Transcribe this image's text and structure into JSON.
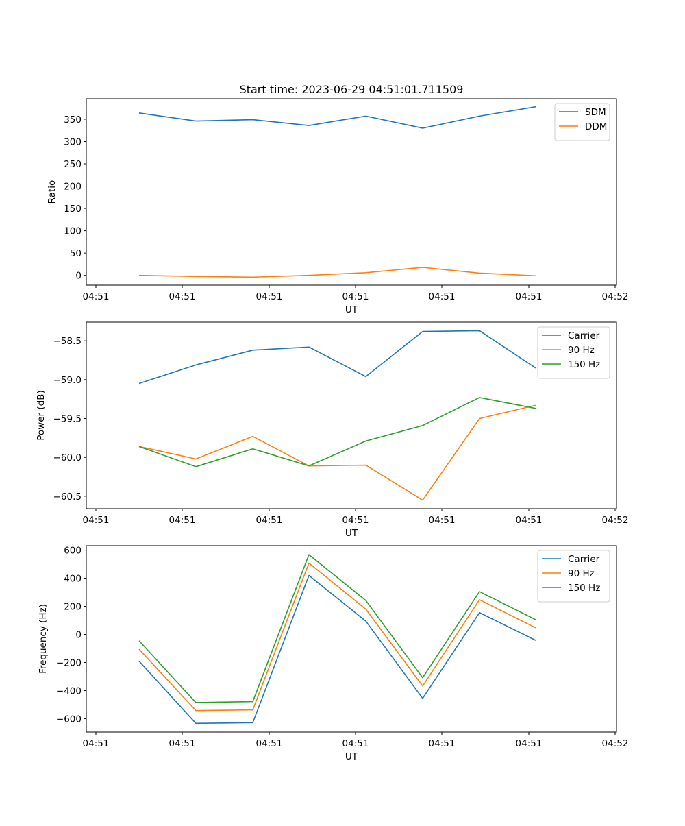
{
  "figure": {
    "title": "Start time: 2023-06-29 04:51:01.711509"
  },
  "colors": {
    "blue": "#1f77b4",
    "orange": "#ff7f0e",
    "green": "#2ca02c"
  },
  "chart_data": [
    {
      "type": "line",
      "title": "Start time: 2023-06-29 04:51:01.711509",
      "xlabel": "UT",
      "ylabel": "Ratio",
      "x_ticks": [
        "04:51",
        "04:51",
        "04:51",
        "04:51",
        "04:51",
        "04:51",
        "04:52"
      ],
      "ylim": [
        -22,
        396
      ],
      "y_ticks": [
        0,
        50,
        100,
        150,
        200,
        250,
        300,
        350
      ],
      "grid": false,
      "legend_position": "top-right",
      "series": [
        {
          "name": "SDM",
          "color": "#1f77b4",
          "values": [
            364,
            346,
            349,
            336,
            357,
            330,
            357,
            378
          ]
        },
        {
          "name": "DDM",
          "color": "#ff7f0e",
          "values": [
            0,
            -2.5,
            -4,
            0,
            6,
            18,
            5,
            -1
          ]
        }
      ]
    },
    {
      "type": "line",
      "title": "",
      "xlabel": "UT",
      "ylabel": "Power (dB)",
      "x_ticks": [
        "04:51",
        "04:51",
        "04:51",
        "04:51",
        "04:51",
        "04:51",
        "04:52"
      ],
      "ylim": [
        -60.66,
        -58.26
      ],
      "y_ticks": [
        -58.5,
        -59.0,
        -59.5,
        -60.0,
        -60.5
      ],
      "y_tick_labels": [
        "−58.5",
        "−59.0",
        "−59.5",
        "−60.0",
        "−60.5"
      ],
      "grid": false,
      "legend_position": "top-right",
      "series": [
        {
          "name": "Carrier",
          "color": "#1f77b4",
          "values": [
            -59.05,
            -58.81,
            -58.62,
            -58.58,
            -58.96,
            -58.38,
            -58.37,
            -58.85
          ]
        },
        {
          "name": "90 Hz",
          "color": "#ff7f0e",
          "values": [
            -59.86,
            -60.02,
            -59.73,
            -60.11,
            -60.1,
            -60.55,
            -59.5,
            -59.33
          ]
        },
        {
          "name": "150 Hz",
          "color": "#2ca02c",
          "values": [
            -59.86,
            -60.12,
            -59.89,
            -60.11,
            -59.79,
            -59.59,
            -59.23,
            -59.37
          ]
        }
      ]
    },
    {
      "type": "line",
      "title": "",
      "xlabel": "UT",
      "ylabel": "Frequency (Hz)",
      "x_ticks": [
        "04:51",
        "04:51",
        "04:51",
        "04:51",
        "04:51",
        "04:51",
        "04:52"
      ],
      "ylim": [
        -695,
        632
      ],
      "y_ticks": [
        600,
        400,
        200,
        0,
        -200,
        -400,
        -600
      ],
      "y_tick_labels": [
        "600",
        "400",
        "200",
        "0",
        "−200",
        "−400",
        "−600"
      ],
      "grid": false,
      "legend_position": "top-right",
      "series": [
        {
          "name": "Carrier",
          "color": "#1f77b4",
          "values": [
            -190,
            -633,
            -628,
            420,
            95,
            -455,
            155,
            -42
          ]
        },
        {
          "name": "90 Hz",
          "color": "#ff7f0e",
          "values": [
            -105,
            -542,
            -537,
            508,
            180,
            -367,
            247,
            47
          ]
        },
        {
          "name": "150 Hz",
          "color": "#2ca02c",
          "values": [
            -45,
            -485,
            -478,
            568,
            242,
            -308,
            305,
            105
          ]
        }
      ]
    }
  ]
}
